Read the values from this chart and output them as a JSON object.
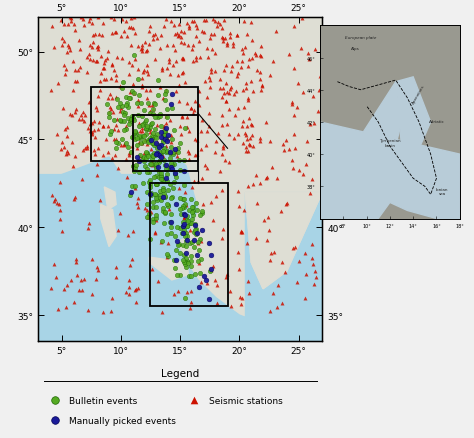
{
  "map_xlim": [
    3,
    27
  ],
  "map_ylim": [
    33.5,
    52
  ],
  "ocean_color": "#a8d4e6",
  "land_color": "#deded4",
  "fig_bg_color": "#f0f0f0",
  "seismic_color": "#cc1100",
  "bulletin_color": "#55aa22",
  "manual_color": "#1a1a99",
  "xticks": [
    5,
    10,
    15,
    20,
    25
  ],
  "yticks": [
    35,
    40,
    45,
    50
  ],
  "xlabel_deg": [
    "5°",
    "10°",
    "15°",
    "20°",
    "25°"
  ],
  "ylabel_deg": [
    "35°",
    "40°",
    "45°",
    "50°"
  ],
  "legend_title": "Legend",
  "inset_bg": "#c8c8b8"
}
